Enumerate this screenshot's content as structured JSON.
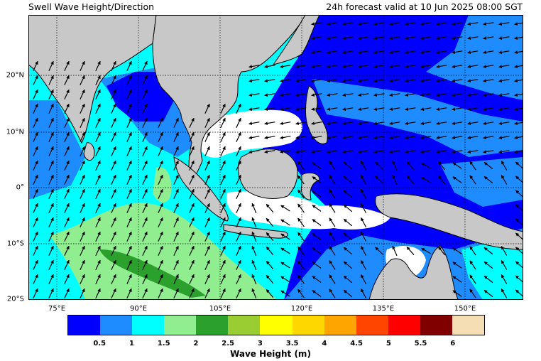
{
  "header": {
    "title": "Swell Wave Height/Direction",
    "valid_time": "24h forecast valid at 10 Jun 2025 08:00 SGT"
  },
  "map": {
    "lon_labels": [
      "75°E",
      "90°E",
      "105°E",
      "120°E",
      "135°E",
      "150°E"
    ],
    "lat_labels": [
      "20°N",
      "10°N",
      "0°",
      "10°S",
      "20°S"
    ],
    "land_color": "#c8c8c8",
    "gridlines": "dotted"
  },
  "colorbar": {
    "label": "Wave Height (m)",
    "tick_labels": [
      "0.5",
      "1",
      "1.5",
      "2",
      "2.5",
      "3",
      "3.5",
      "4",
      "4.5",
      "5",
      "5.5",
      "6"
    ],
    "colors": [
      "#0000ff",
      "#1e8cff",
      "#00ffff",
      "#90ee90",
      "#2ca02c",
      "#9acd32",
      "#ffff00",
      "#ffd700",
      "#ffa500",
      "#ff4500",
      "#ff0000",
      "#800000",
      "#f5deb3"
    ]
  },
  "legend_colors": {
    "wave_0_0_5": "#0000ff",
    "wave_0_5_1": "#1e8cff",
    "wave_1_1_5": "#00ffff",
    "wave_1_5_2": "#90ee90",
    "wave_2_2_5": "#2ca02c",
    "calm": "#ffffff"
  }
}
